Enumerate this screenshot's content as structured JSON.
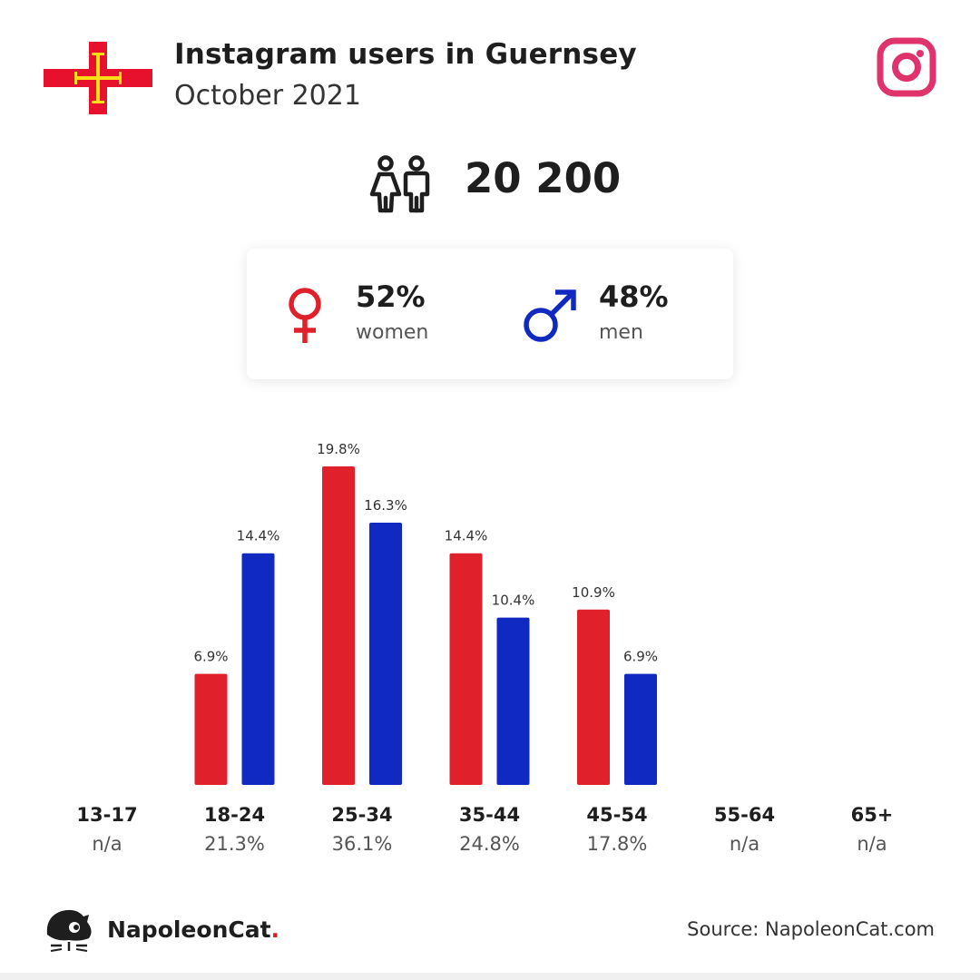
{
  "header": {
    "title": "Instagram users in Guernsey",
    "subtitle": "October 2021"
  },
  "icons": {
    "flag": "guernsey-flag-icon",
    "platform": "instagram-icon",
    "users": "users-icon",
    "female": "female-symbol-icon",
    "male": "male-symbol-icon",
    "brand": "napoleoncat-logo-icon"
  },
  "colors": {
    "women": "#e0202a",
    "men": "#1029c0",
    "instagram": "#e0336c",
    "flag_red": "#e8112d",
    "flag_gold": "#f9dd16"
  },
  "total": {
    "value": "20 200"
  },
  "gender": {
    "women": {
      "value": "52%",
      "label": "women"
    },
    "men": {
      "value": "48%",
      "label": "men"
    }
  },
  "chart_data": {
    "type": "bar",
    "categories": [
      "13-17",
      "18-24",
      "25-34",
      "35-44",
      "45-54",
      "55-64",
      "65+"
    ],
    "category_totals": [
      "n/a",
      "21.3%",
      "36.1%",
      "24.8%",
      "17.8%",
      "n/a",
      "n/a"
    ],
    "series": [
      {
        "name": "women",
        "values": [
          null,
          6.9,
          19.8,
          14.4,
          10.9,
          null,
          null
        ],
        "labels": [
          "",
          "6.9%",
          "19.8%",
          "14.4%",
          "10.9%",
          "",
          ""
        ]
      },
      {
        "name": "men",
        "values": [
          null,
          14.4,
          16.3,
          10.4,
          6.9,
          null,
          null
        ],
        "labels": [
          "",
          "14.4%",
          "16.3%",
          "10.4%",
          "6.9%",
          "",
          ""
        ]
      }
    ],
    "ylim": [
      0,
      19.8
    ],
    "grid": false
  },
  "footer": {
    "brand": "NapoleonCat",
    "brand_dot": ".",
    "source": "Source: NapoleonCat.com"
  }
}
